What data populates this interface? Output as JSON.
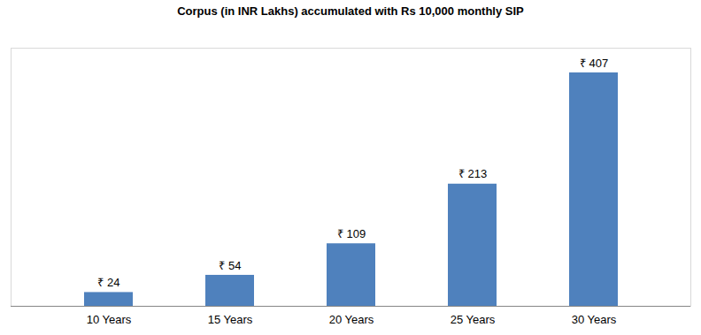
{
  "chart_data": {
    "type": "bar",
    "title": "Corpus (in INR Lakhs) accumulated with Rs 10,000 monthly SIP",
    "categories": [
      "10 Years",
      "15 Years",
      "20 Years",
      "25 Years",
      "30 Years"
    ],
    "values": [
      24,
      54,
      109,
      213,
      407
    ],
    "value_labels": [
      "₹ 24",
      "₹ 54",
      "₹ 109",
      "₹ 213",
      "₹ 407"
    ],
    "color": "#4f81bd",
    "ylim": [
      0,
      450
    ],
    "data_labels": true,
    "tick_labels": "x",
    "grid": false
  }
}
